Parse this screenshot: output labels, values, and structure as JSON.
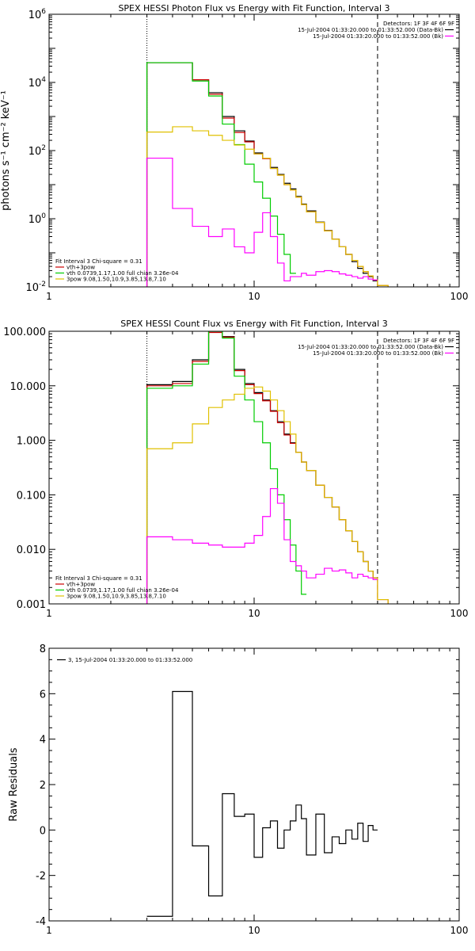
{
  "chart_data": [
    {
      "type": "line",
      "title": "SPEX HESSI Photon Flux vs Energy with Fit Function, Interval 3",
      "xlabel": "",
      "ylabel": "photons s⁻¹ cm⁻² keV⁻¹",
      "xscale": "log",
      "yscale": "log",
      "xlim": [
        1,
        100
      ],
      "ylim": [
        0.01,
        1000000
      ],
      "xticks": [
        {
          "v": 1,
          "label": "1"
        },
        {
          "v": 10,
          "label": "10"
        },
        {
          "v": 100,
          "label": "100"
        }
      ],
      "yticks": [
        {
          "v": 0.01,
          "base": "10",
          "exp": "-2"
        },
        {
          "v": 1,
          "base": "10",
          "exp": "0"
        },
        {
          "v": 100,
          "base": "10",
          "exp": "2"
        },
        {
          "v": 10000,
          "base": "10",
          "exp": "4"
        },
        {
          "v": 1000000,
          "base": "10",
          "exp": "6"
        }
      ],
      "vlines": [
        {
          "x": 3,
          "style": "dotted"
        },
        {
          "x": 40,
          "style": "dashed"
        }
      ],
      "legend_right": {
        "header": "Detectors: 1F 3F 4F 6F 9F",
        "entries": [
          {
            "text": "15-Jul-2004 01:33:20.000 to 01:33:52.000 (Data-Bk)",
            "color": "#000000"
          },
          {
            "text": "15-Jul-2004 01:33:20.000 to 01:33:52.000 (Bk)",
            "color": "#ff00ff"
          }
        ]
      },
      "legend_left": {
        "header": "Fit Interval 3   Chi-square = 0.31",
        "entries": [
          {
            "text": "vth+3pow",
            "color": "#cc0000"
          },
          {
            "text": "vth 0.0739,1.17,1.00  full chian 3.26e-04",
            "color": "#00cc00"
          },
          {
            "text": "3pow 9.08,1.50,10.9,3.85,13.8,7.10",
            "color": "#e0c000"
          }
        ]
      },
      "edges": [
        3,
        4,
        5,
        6,
        7,
        8,
        9,
        10,
        11,
        12,
        13,
        14,
        15,
        16,
        17,
        18,
        20,
        22,
        24,
        26,
        28,
        30,
        32,
        34,
        36,
        38,
        40,
        45
      ],
      "series": [
        {
          "key": "data",
          "color": "#000000",
          "values": [
            38000,
            38000,
            12000,
            5000,
            1000,
            380,
            190,
            85,
            60,
            32,
            20,
            11,
            7.5,
            4.5,
            2.7,
            1.7,
            0.8,
            0.45,
            0.25,
            0.15,
            0.09,
            0.055,
            0.035,
            0.025,
            0.02,
            0.015,
            null
          ]
        },
        {
          "key": "total",
          "color": "#cc0000",
          "values": [
            38000,
            38000,
            12000,
            4500,
            900,
            340,
            180,
            80,
            58,
            30,
            19,
            10,
            7,
            4.3,
            2.6,
            1.6,
            0.78,
            0.44,
            0.25,
            0.15,
            0.09,
            0.06,
            0.04,
            0.028,
            0.021,
            0.016,
            0.011
          ]
        },
        {
          "key": "thermal",
          "color": "#00cc00",
          "values": [
            38000,
            38000,
            11000,
            4000,
            600,
            150,
            40,
            12,
            4,
            1.2,
            0.35,
            0.09,
            0.025,
            null,
            null,
            null,
            null,
            null,
            null,
            null,
            null,
            null,
            null,
            null,
            null,
            null,
            null
          ]
        },
        {
          "key": "powerlaw",
          "color": "#e0c000",
          "values": [
            350,
            500,
            380,
            280,
            200,
            145,
            110,
            80,
            60,
            30,
            19,
            10,
            7,
            4.3,
            2.6,
            1.6,
            0.78,
            0.44,
            0.25,
            0.15,
            0.09,
            0.06,
            0.04,
            0.028,
            0.021,
            0.016,
            0.011
          ]
        },
        {
          "key": "background",
          "color": "#ff00ff",
          "values": [
            60,
            2,
            0.6,
            0.3,
            0.5,
            0.15,
            0.1,
            0.4,
            1.5,
            0.3,
            0.05,
            0.015,
            0.02,
            0.02,
            0.025,
            0.022,
            0.028,
            0.03,
            0.028,
            0.024,
            0.022,
            0.02,
            0.018,
            0.02,
            0.017,
            0.016,
            null
          ]
        }
      ]
    },
    {
      "type": "line",
      "title": "SPEX HESSI Count Flux vs Energy with Fit Function, Interval 3",
      "xlabel": "",
      "ylabel": "",
      "xscale": "log",
      "yscale": "log",
      "xlim": [
        1,
        100
      ],
      "ylim": [
        0.001,
        100
      ],
      "xticks": [
        {
          "v": 1,
          "label": "1"
        },
        {
          "v": 10,
          "label": "10"
        },
        {
          "v": 100,
          "label": "100"
        }
      ],
      "yticks": [
        {
          "v": 0.001,
          "label": "0.001"
        },
        {
          "v": 0.01,
          "label": "0.010"
        },
        {
          "v": 0.1,
          "label": "0.100"
        },
        {
          "v": 1,
          "label": "1.000"
        },
        {
          "v": 10,
          "label": "10.000"
        },
        {
          "v": 100,
          "label": "100.000"
        }
      ],
      "vlines": [
        {
          "x": 3,
          "style": "dotted"
        },
        {
          "x": 40,
          "style": "dashed"
        }
      ],
      "legend_right": {
        "header": "Detectors: 1F 3F 4F 6F 9F",
        "entries": [
          {
            "text": "15-Jul-2004 01:33:20.000 to 01:33:52.000 (Data-Bk)",
            "color": "#000000"
          },
          {
            "text": "15-Jul-2004 01:33:20.000 to 01:33:52.000 (Bk)",
            "color": "#ff00ff"
          }
        ]
      },
      "legend_left": {
        "header": "Fit Interval 3   Chi-square = 0.31",
        "entries": [
          {
            "text": "vth+3pow",
            "color": "#cc0000"
          },
          {
            "text": "vth 0.0739,1.17,1.00  full chian 3.26e-04",
            "color": "#00cc00"
          },
          {
            "text": "3pow 9.08,1.50,10.9,3.85,13.8,7.10",
            "color": "#e0c000"
          }
        ]
      },
      "edges": [
        3,
        4,
        5,
        6,
        7,
        8,
        9,
        10,
        11,
        12,
        13,
        14,
        15,
        16,
        17,
        18,
        20,
        22,
        24,
        26,
        28,
        30,
        32,
        34,
        36,
        38,
        40,
        45
      ],
      "series": [
        {
          "key": "data",
          "color": "#000000",
          "values": [
            10.5,
            12,
            30,
            100,
            80,
            20,
            11,
            7.5,
            5.5,
            3.5,
            2.2,
            1.3,
            0.9,
            0.6,
            0.4,
            0.28,
            0.15,
            0.09,
            0.06,
            0.035,
            0.022,
            0.014,
            0.009,
            0.006,
            0.004,
            0.003,
            null
          ]
        },
        {
          "key": "total",
          "color": "#cc0000",
          "values": [
            10,
            11,
            28,
            95,
            78,
            19,
            10.5,
            7.2,
            5.3,
            3.4,
            2.1,
            1.25,
            0.88,
            0.6,
            0.4,
            0.28,
            0.15,
            0.09,
            0.06,
            0.035,
            0.022,
            0.014,
            0.009,
            0.006,
            0.004,
            0.003,
            0.0012
          ]
        },
        {
          "key": "thermal",
          "color": "#00cc00",
          "values": [
            9,
            10,
            25,
            100,
            75,
            15,
            5.5,
            2.2,
            0.9,
            0.3,
            0.1,
            0.035,
            0.012,
            0.004,
            0.0015,
            null,
            null,
            null,
            null,
            null,
            null,
            null,
            null,
            null,
            null,
            null,
            null
          ]
        },
        {
          "key": "powerlaw",
          "color": "#e0c000",
          "values": [
            0.7,
            0.9,
            2,
            4,
            5.5,
            7,
            9,
            9.5,
            8,
            5.5,
            3.5,
            2.2,
            1.3,
            0.6,
            0.4,
            0.28,
            0.15,
            0.09,
            0.06,
            0.035,
            0.022,
            0.014,
            0.009,
            0.006,
            0.004,
            0.003,
            0.0012
          ]
        },
        {
          "key": "background",
          "color": "#ff00ff",
          "values": [
            0.017,
            0.015,
            0.013,
            0.012,
            0.011,
            0.011,
            0.013,
            0.018,
            0.04,
            0.13,
            0.07,
            0.015,
            0.006,
            0.005,
            0.004,
            0.003,
            0.0035,
            0.0045,
            0.004,
            0.0042,
            0.0037,
            0.003,
            0.0035,
            0.0032,
            0.003,
            0.0028,
            null
          ]
        }
      ]
    },
    {
      "type": "line",
      "title": "",
      "xlabel": "",
      "ylabel": "Raw Residuals",
      "xscale": "log",
      "yscale": "linear",
      "xlim": [
        1,
        100
      ],
      "ylim": [
        -4,
        8
      ],
      "xticks": [
        {
          "v": 1,
          "label": "1"
        },
        {
          "v": 10,
          "label": "10"
        },
        {
          "v": 100,
          "label": "100"
        }
      ],
      "yticks": [
        {
          "v": -4,
          "label": "-4"
        },
        {
          "v": -2,
          "label": "-2"
        },
        {
          "v": 0,
          "label": "0"
        },
        {
          "v": 2,
          "label": "2"
        },
        {
          "v": 4,
          "label": "4"
        },
        {
          "v": 6,
          "label": "6"
        },
        {
          "v": 8,
          "label": "8"
        }
      ],
      "vlines": [],
      "legend_left_top": {
        "entries": [
          {
            "text": "3, 15-Jul-2004 01:33:20.000 to 01:33:52.000",
            "color": "#000000"
          }
        ]
      },
      "edges": [
        3,
        4,
        5,
        6,
        7,
        8,
        9,
        10,
        11,
        12,
        13,
        14,
        15,
        16,
        17,
        18,
        20,
        22,
        24,
        26,
        28,
        30,
        32,
        34,
        36,
        38,
        40
      ],
      "series": [
        {
          "key": "residuals",
          "color": "#000000",
          "values": [
            -3.8,
            6.1,
            -0.7,
            -2.9,
            1.6,
            0.6,
            0.7,
            -1.2,
            0.1,
            0.4,
            -0.8,
            0,
            0.4,
            1.1,
            0.5,
            -1.1,
            0.7,
            -1,
            -0.3,
            -0.6,
            0,
            -0.4,
            0.3,
            -0.5,
            0.2,
            0
          ]
        }
      ]
    }
  ]
}
